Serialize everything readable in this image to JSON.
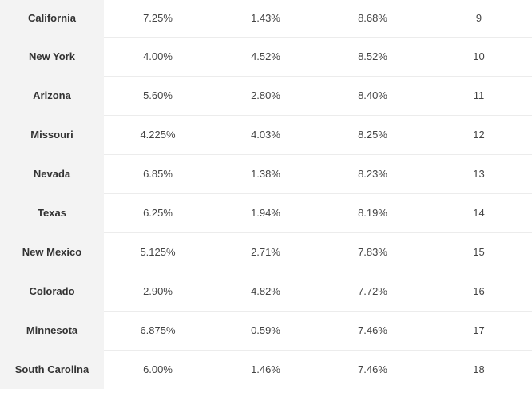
{
  "table": {
    "rows": [
      {
        "state": "California",
        "state_rate": "7.25%",
        "local_rate": "1.43%",
        "combined_rate": "8.68%",
        "rank": "9"
      },
      {
        "state": "New York",
        "state_rate": "4.00%",
        "local_rate": "4.52%",
        "combined_rate": "8.52%",
        "rank": "10"
      },
      {
        "state": "Arizona",
        "state_rate": "5.60%",
        "local_rate": "2.80%",
        "combined_rate": "8.40%",
        "rank": "11"
      },
      {
        "state": "Missouri",
        "state_rate": "4.225%",
        "local_rate": "4.03%",
        "combined_rate": "8.25%",
        "rank": "12"
      },
      {
        "state": "Nevada",
        "state_rate": "6.85%",
        "local_rate": "1.38%",
        "combined_rate": "8.23%",
        "rank": "13"
      },
      {
        "state": "Texas",
        "state_rate": "6.25%",
        "local_rate": "1.94%",
        "combined_rate": "8.19%",
        "rank": "14"
      },
      {
        "state": "New Mexico",
        "state_rate": "5.125%",
        "local_rate": "2.71%",
        "combined_rate": "7.83%",
        "rank": "15"
      },
      {
        "state": "Colorado",
        "state_rate": "2.90%",
        "local_rate": "4.82%",
        "combined_rate": "7.72%",
        "rank": "16"
      },
      {
        "state": "Minnesota",
        "state_rate": "6.875%",
        "local_rate": "0.59%",
        "combined_rate": "7.46%",
        "rank": "17"
      },
      {
        "state": "South Carolina",
        "state_rate": "6.00%",
        "local_rate": "1.46%",
        "combined_rate": "7.46%",
        "rank": "18"
      }
    ]
  }
}
